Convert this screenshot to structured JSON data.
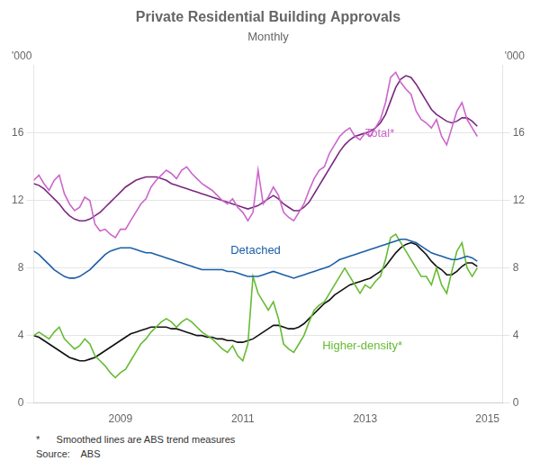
{
  "chart_data": {
    "type": "line",
    "title": "Private Residential Building Approvals",
    "subtitle": "Monthly",
    "x": [
      2007.583,
      2007.6663333,
      2007.7496667,
      2007.833,
      2007.9163333,
      2007.9996667,
      2008.083,
      2008.1663333,
      2008.2496667,
      2008.333,
      2008.4163333,
      2008.4996667,
      2008.583,
      2008.6663333,
      2008.7496667,
      2008.833,
      2008.9163333,
      2008.9996667,
      2009.083,
      2009.1663333,
      2009.2496667,
      2009.333,
      2009.4163333,
      2009.4996667,
      2009.583,
      2009.6663333,
      2009.7496667,
      2009.833,
      2009.9163333,
      2009.9996667,
      2010.083,
      2010.1663333,
      2010.2496667,
      2010.333,
      2010.4163333,
      2010.4996667,
      2010.583,
      2010.6663333,
      2010.7496667,
      2010.833,
      2010.9163333,
      2010.9996667,
      2011.083,
      2011.1663333,
      2011.2496667,
      2011.333,
      2011.4163333,
      2011.4996667,
      2011.583,
      2011.6663333,
      2011.7496667,
      2011.833,
      2011.9163333,
      2011.9996667,
      2012.083,
      2012.1663333,
      2012.2496667,
      2012.333,
      2012.4163333,
      2012.4996667,
      2012.583,
      2012.6663333,
      2012.7496667,
      2012.833,
      2012.9163333,
      2012.9996667,
      2013.083,
      2013.1663333,
      2013.2496667,
      2013.333,
      2013.4163333,
      2013.4996667,
      2013.583,
      2013.6663333,
      2013.7496667,
      2013.833,
      2013.9163333,
      2013.9996667,
      2014.083,
      2014.1663333,
      2014.2496667,
      2014.333,
      2014.4163333,
      2014.4996667,
      2014.583,
      2014.6663333,
      2014.7496667,
      2014.833
    ],
    "xlim": [
      2007.58,
      2015.25
    ],
    "xticks": [
      2009,
      2011,
      2013,
      2015
    ],
    "ylim": [
      0,
      20
    ],
    "yticks": [
      0,
      4,
      8,
      12,
      16
    ],
    "y2lim": [
      0,
      20
    ],
    "y2ticks": [
      0,
      4,
      8,
      12,
      16
    ],
    "ylabel": "'000",
    "y2label": "'000",
    "grid": "y",
    "series": [
      {
        "color": "#cc66cc",
        "values": [
          13.2,
          13.5,
          13.0,
          12.6,
          13.2,
          13.5,
          12.4,
          11.8,
          11.4,
          11.6,
          12.2,
          12.0,
          10.6,
          10.2,
          10.3,
          10.0,
          9.8,
          10.3,
          10.3,
          10.8,
          11.3,
          11.8,
          12.1,
          12.8,
          13.2,
          13.5,
          13.8,
          13.6,
          13.3,
          13.8,
          14.0,
          13.6,
          13.3,
          13.0,
          12.8,
          12.6,
          12.3,
          12.0,
          11.8,
          12.1,
          11.6,
          11.3,
          10.8,
          11.3,
          13.8,
          11.8,
          12.2,
          12.8,
          12.3,
          11.3,
          11.0,
          10.8,
          11.3,
          11.8,
          12.6,
          13.3,
          13.8,
          14.0,
          14.8,
          15.3,
          15.8,
          16.1,
          16.3,
          15.8,
          15.6,
          16.0,
          15.8,
          16.3,
          16.8,
          17.8,
          19.3,
          19.6,
          19.0,
          18.6,
          18.3,
          17.3,
          16.8,
          16.6,
          16.3,
          16.8,
          15.8,
          15.3,
          16.3,
          17.3,
          17.8,
          16.8,
          16.3,
          15.8
        ]
      },
      {
        "color": "#7b2880",
        "values": [
          13.0,
          12.9,
          12.7,
          12.4,
          12.1,
          11.8,
          11.4,
          11.1,
          10.9,
          10.8,
          10.8,
          10.9,
          11.1,
          11.3,
          11.6,
          11.9,
          12.2,
          12.5,
          12.8,
          13.0,
          13.2,
          13.3,
          13.4,
          13.4,
          13.4,
          13.3,
          13.2,
          13.0,
          12.9,
          12.8,
          12.7,
          12.6,
          12.5,
          12.4,
          12.3,
          12.2,
          12.1,
          12.0,
          11.9,
          11.8,
          11.7,
          11.6,
          11.5,
          11.6,
          11.7,
          11.9,
          12.1,
          12.3,
          12.1,
          11.8,
          11.6,
          11.4,
          11.4,
          11.6,
          11.9,
          12.4,
          12.9,
          13.4,
          13.9,
          14.4,
          14.9,
          15.3,
          15.6,
          15.8,
          15.9,
          16.0,
          16.1,
          16.3,
          16.6,
          17.1,
          17.9,
          18.7,
          19.2,
          19.4,
          19.3,
          18.9,
          18.4,
          17.9,
          17.4,
          17.1,
          16.9,
          16.7,
          16.6,
          16.7,
          16.9,
          16.9,
          16.7,
          16.4
        ]
      },
      {
        "color": "#1a5fa8",
        "values": [
          9.0,
          8.8,
          8.5,
          8.2,
          7.9,
          7.7,
          7.5,
          7.4,
          7.4,
          7.5,
          7.7,
          7.9,
          8.2,
          8.5,
          8.8,
          9.0,
          9.1,
          9.2,
          9.2,
          9.2,
          9.1,
          9.0,
          8.9,
          8.9,
          8.8,
          8.7,
          8.6,
          8.5,
          8.4,
          8.3,
          8.2,
          8.1,
          8.0,
          7.9,
          7.9,
          7.9,
          7.9,
          7.9,
          7.8,
          7.8,
          7.7,
          7.6,
          7.5,
          7.5,
          7.5,
          7.6,
          7.7,
          7.8,
          7.7,
          7.6,
          7.5,
          7.4,
          7.5,
          7.6,
          7.7,
          7.8,
          7.9,
          8.0,
          8.1,
          8.3,
          8.5,
          8.6,
          8.7,
          8.8,
          8.9,
          9.0,
          9.1,
          9.2,
          9.3,
          9.4,
          9.5,
          9.6,
          9.7,
          9.7,
          9.6,
          9.5,
          9.3,
          9.1,
          8.9,
          8.8,
          8.7,
          8.6,
          8.5,
          8.5,
          8.6,
          8.7,
          8.6,
          8.4
        ]
      },
      {
        "color": "#66bb33",
        "values": [
          4.0,
          4.2,
          4.0,
          3.8,
          4.2,
          4.5,
          3.8,
          3.5,
          3.2,
          3.4,
          3.8,
          3.5,
          2.8,
          2.5,
          2.2,
          1.8,
          1.5,
          1.8,
          2.0,
          2.5,
          3.0,
          3.5,
          3.8,
          4.2,
          4.5,
          4.8,
          5.0,
          4.8,
          4.5,
          4.8,
          5.0,
          4.8,
          4.5,
          4.2,
          4.0,
          3.8,
          3.5,
          3.2,
          3.0,
          3.4,
          2.8,
          2.5,
          3.5,
          7.5,
          6.5,
          6.0,
          5.5,
          6.0,
          5.0,
          3.5,
          3.2,
          3.0,
          3.5,
          4.0,
          4.8,
          5.5,
          5.8,
          6.0,
          6.5,
          7.0,
          7.5,
          8.0,
          7.5,
          7.0,
          6.5,
          7.0,
          6.8,
          7.2,
          7.5,
          8.5,
          9.8,
          10.0,
          9.5,
          9.0,
          8.5,
          8.0,
          7.5,
          7.5,
          7.0,
          8.0,
          7.0,
          6.5,
          7.8,
          9.0,
          9.5,
          8.0,
          7.5,
          8.0
        ]
      },
      {
        "color": "#111111",
        "values": [
          4.0,
          3.9,
          3.7,
          3.5,
          3.3,
          3.1,
          2.9,
          2.7,
          2.6,
          2.5,
          2.5,
          2.6,
          2.7,
          2.9,
          3.1,
          3.3,
          3.5,
          3.7,
          3.9,
          4.1,
          4.2,
          4.3,
          4.4,
          4.5,
          4.5,
          4.5,
          4.5,
          4.4,
          4.4,
          4.3,
          4.2,
          4.1,
          4.0,
          4.0,
          3.9,
          3.9,
          3.8,
          3.8,
          3.7,
          3.7,
          3.6,
          3.6,
          3.7,
          3.8,
          4.0,
          4.2,
          4.4,
          4.6,
          4.6,
          4.5,
          4.4,
          4.4,
          4.5,
          4.7,
          5.0,
          5.3,
          5.6,
          5.9,
          6.1,
          6.4,
          6.6,
          6.8,
          7.0,
          7.1,
          7.2,
          7.3,
          7.4,
          7.6,
          7.8,
          8.1,
          8.5,
          8.9,
          9.2,
          9.4,
          9.5,
          9.4,
          9.1,
          8.8,
          8.4,
          8.1,
          7.9,
          7.6,
          7.6,
          7.8,
          8.1,
          8.3,
          8.3,
          8.1
        ]
      }
    ],
    "annotations": [
      {
        "text": "Total*",
        "x": 2013,
        "y": 15.8,
        "color": "#cc66cc"
      },
      {
        "text": "Detached",
        "x": 2010.8,
        "y": 8.85,
        "color": "#1a5fa8"
      },
      {
        "text": "Higher-density*",
        "x": 2012.3,
        "y": 3.2,
        "color": "#66bb33"
      }
    ],
    "footnotes": [
      "*      Smoothed lines are ABS trend measures",
      "Source:    ABS"
    ]
  }
}
